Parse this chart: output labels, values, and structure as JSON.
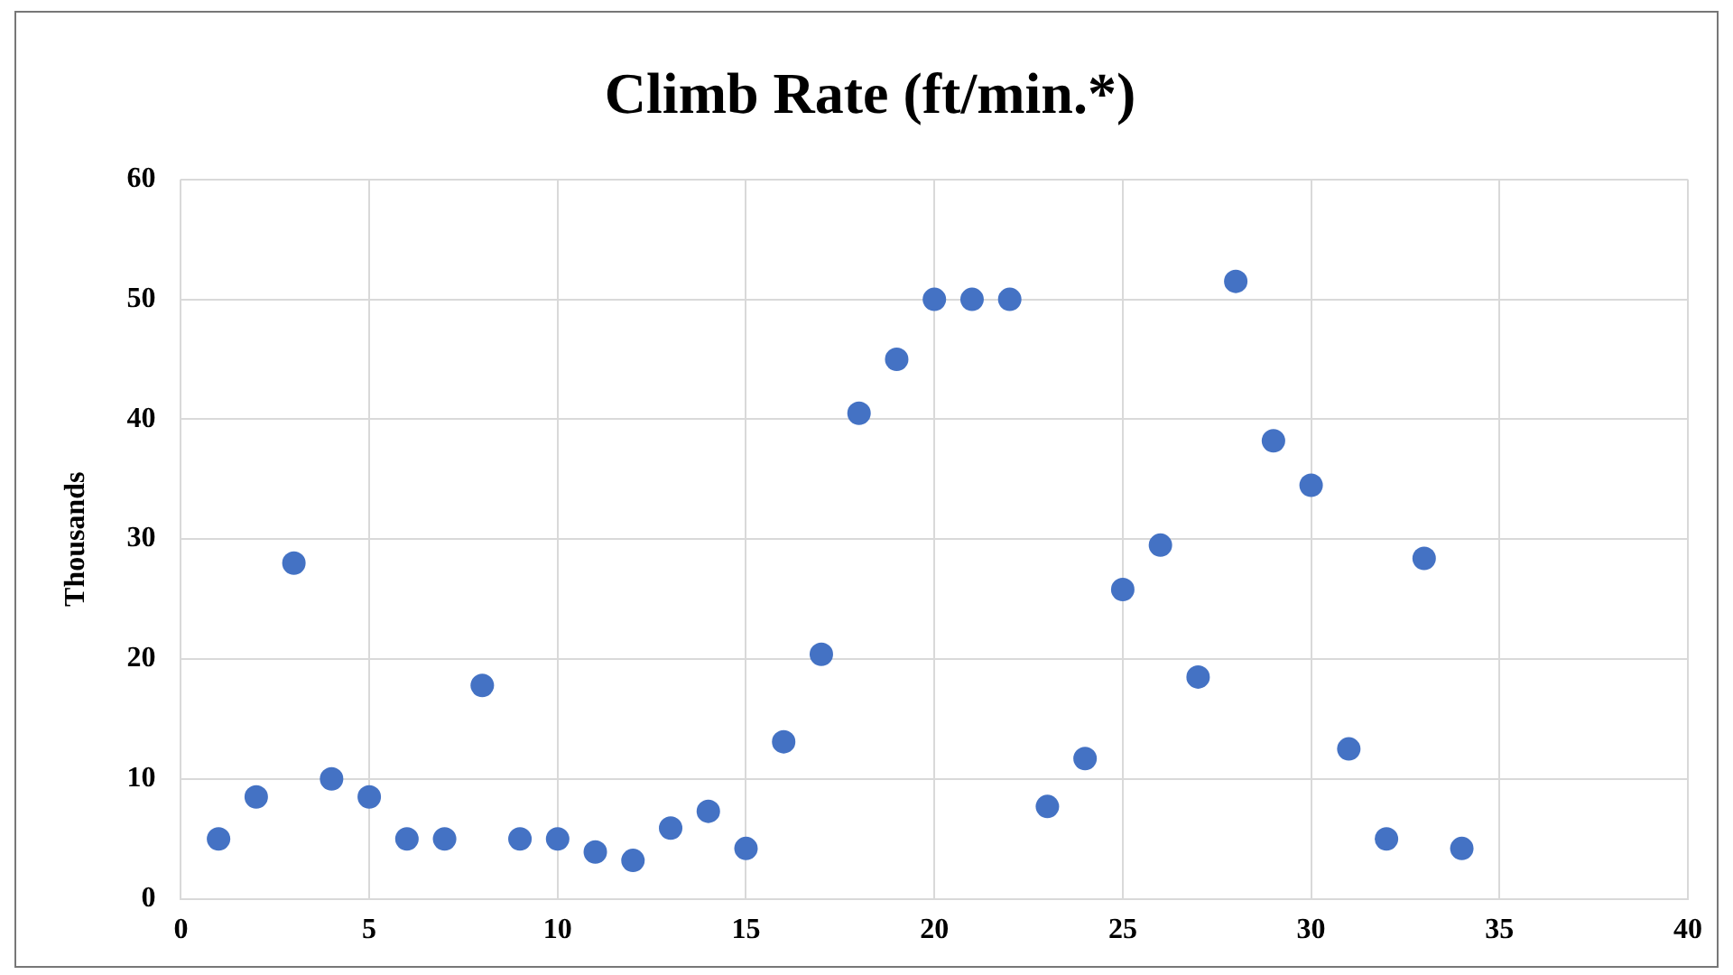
{
  "chart_data": {
    "type": "scatter",
    "title": "Climb Rate (ft/min.*)",
    "ylabel": "Thousands",
    "x": [
      1,
      2,
      3,
      4,
      5,
      6,
      7,
      8,
      9,
      10,
      11,
      12,
      13,
      14,
      15,
      16,
      17,
      18,
      19,
      20,
      21,
      22,
      23,
      24,
      25,
      26,
      27,
      28,
      29,
      30,
      31,
      32,
      33,
      34
    ],
    "series": [
      {
        "color": "#4472c4",
        "values": [
          5,
          8.5,
          28,
          10,
          8.5,
          5,
          5,
          17.8,
          5,
          5,
          3.9,
          3.2,
          5.9,
          7.3,
          4.2,
          13.1,
          20.4,
          40.5,
          45,
          50,
          50,
          50,
          7.7,
          11.7,
          25.8,
          29.5,
          18.5,
          51.5,
          38.2,
          34.5,
          12.5,
          5,
          28.4,
          4.2
        ]
      }
    ],
    "xlim": [
      0,
      40
    ],
    "xticks": [
      0,
      5,
      10,
      15,
      20,
      25,
      30,
      35,
      40
    ],
    "ylim": [
      0,
      60
    ],
    "yticks": [
      0,
      10,
      20,
      30,
      40,
      50,
      60
    ],
    "grid": true,
    "legend": false,
    "marker": "circle"
  }
}
